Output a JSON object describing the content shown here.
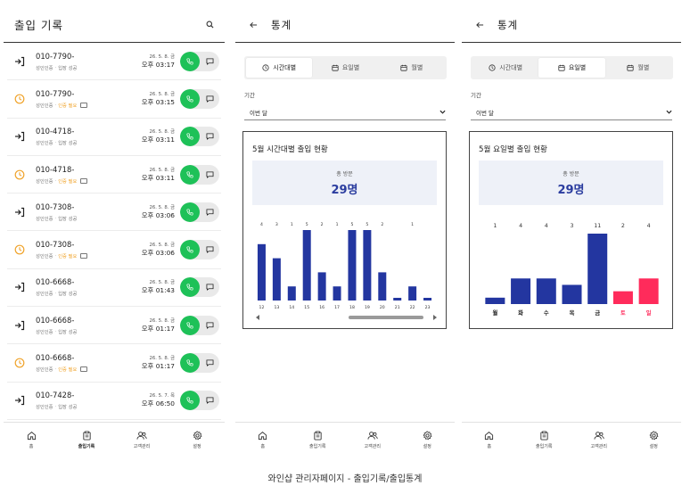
{
  "records_screen": {
    "title": "출입 기록",
    "records": [
      {
        "type": "entry",
        "phone": "010-7790-",
        "auth": "성인인증",
        "status": "입장 성공",
        "status_kind": "ok",
        "memo": false,
        "date": "26. 5. 8. 금",
        "time": "오후 03:17"
      },
      {
        "type": "pending",
        "phone": "010-7790-",
        "auth": "성인인증",
        "status": "인증 필요",
        "status_kind": "pending",
        "memo": true,
        "date": "26. 5. 8. 금",
        "time": "오후 03:15"
      },
      {
        "type": "entry",
        "phone": "010-4718-",
        "auth": "성인인증",
        "status": "입장 성공",
        "status_kind": "ok",
        "memo": false,
        "date": "26. 5. 8. 금",
        "time": "오후 03:11"
      },
      {
        "type": "pending",
        "phone": "010-4718-",
        "auth": "성인인증",
        "status": "인증 필요",
        "status_kind": "pending",
        "memo": true,
        "date": "26. 5. 8. 금",
        "time": "오후 03:11"
      },
      {
        "type": "entry",
        "phone": "010-7308-",
        "auth": "성인인증",
        "status": "입장 성공",
        "status_kind": "ok",
        "memo": false,
        "date": "26. 5. 8. 금",
        "time": "오후 03:06"
      },
      {
        "type": "pending",
        "phone": "010-7308-",
        "auth": "성인인증",
        "status": "인증 필요",
        "status_kind": "pending",
        "memo": true,
        "date": "26. 5. 8. 금",
        "time": "오후 03:06"
      },
      {
        "type": "entry",
        "phone": "010-6668-",
        "auth": "성인인증",
        "status": "입장 성공",
        "status_kind": "ok",
        "memo": false,
        "date": "26. 5. 8. 금",
        "time": "오후 01:43"
      },
      {
        "type": "entry",
        "phone": "010-6668-",
        "auth": "성인인증",
        "status": "입장 성공",
        "status_kind": "ok",
        "memo": false,
        "date": "26. 5. 8. 금",
        "time": "오후 01:17"
      },
      {
        "type": "pending",
        "phone": "010-6668-",
        "auth": "성인인증",
        "status": "인증 필요",
        "status_kind": "pending",
        "memo": true,
        "date": "26. 5. 8. 금",
        "time": "오후 01:17"
      },
      {
        "type": "entry",
        "phone": "010-7428-",
        "auth": "성인인증",
        "status": "입장 성공",
        "status_kind": "ok",
        "memo": false,
        "date": "26. 5. 7. 목",
        "time": "오후 06:50"
      }
    ]
  },
  "nav": {
    "items": [
      {
        "label": "홈",
        "icon": "home-icon"
      },
      {
        "label": "출입기록",
        "icon": "clipboard-icon"
      },
      {
        "label": "고객관리",
        "icon": "users-icon"
      },
      {
        "label": "설정",
        "icon": "gear-icon"
      }
    ]
  },
  "stats_hourly": {
    "title": "통계",
    "tabs": [
      "시간대별",
      "요일별",
      "월별"
    ],
    "active_tab": 0,
    "period_label": "기간",
    "period_value": "이번 달",
    "card_title": "5월 시간대별 출입 현황",
    "total_label": "총 방문",
    "total_value": "29명"
  },
  "stats_weekday": {
    "title": "통계",
    "tabs": [
      "시간대별",
      "요일별",
      "월별"
    ],
    "active_tab": 1,
    "period_label": "기간",
    "period_value": "이번 달",
    "card_title": "5월 요일별 출입 현황",
    "total_label": "총 방문",
    "total_value": "29명"
  },
  "caption": "와인샵 관리자페이지 - 출입기록/출입통계",
  "colors": {
    "accent_blue": "#2336a0",
    "weekend_red": "#ff2b5b",
    "call_green": "#1ec158",
    "pending_orange": "#f0a32a"
  },
  "chart_data": [
    {
      "type": "bar",
      "categories": [
        "12",
        "13",
        "14",
        "15",
        "16",
        "17",
        "18",
        "19",
        "20",
        "21",
        "22",
        "23"
      ],
      "values": [
        4,
        3,
        1,
        5,
        2,
        1,
        5,
        5,
        2,
        0,
        1,
        0
      ],
      "value_labels": [
        "4",
        "3",
        "1",
        "5",
        "2",
        "1",
        "5",
        "5",
        "2",
        "",
        "1",
        ""
      ],
      "ylim": [
        0,
        5
      ]
    },
    {
      "type": "bar",
      "categories": [
        "월",
        "화",
        "수",
        "목",
        "금",
        "토",
        "일"
      ],
      "values": [
        1,
        4,
        4,
        3,
        11,
        2,
        4
      ],
      "weekend": [
        false,
        false,
        false,
        false,
        false,
        true,
        true
      ],
      "ylim": [
        0,
        11
      ]
    }
  ]
}
